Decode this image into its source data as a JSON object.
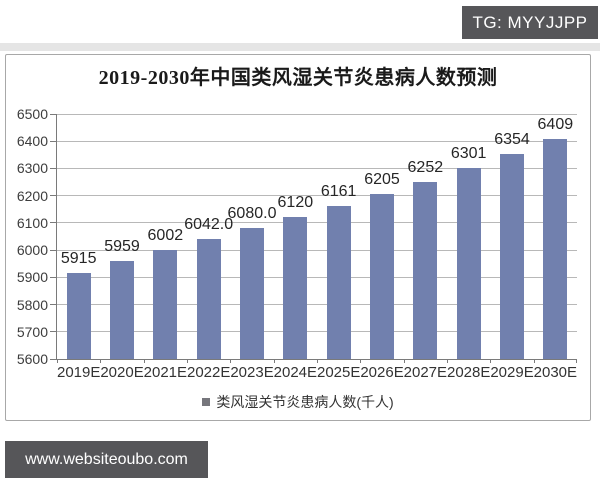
{
  "badge": {
    "text": "TG: MYYJJPP"
  },
  "footer": {
    "website": "www.websiteoubo.com"
  },
  "colors": {
    "bar": "#7180AE",
    "grid": "#b8b8b8",
    "axis": "#7a7a7a",
    "legend_marker": "#76767c",
    "dark_overlay_bg": "#565659"
  },
  "chart_data": {
    "type": "bar",
    "title": "2019-2030年中国类风湿关节炎患病人数预测",
    "legend": "类风湿关节炎患病人数(千人)",
    "legend_position": "bottom",
    "categories": [
      "2019E",
      "2020E",
      "2021E",
      "2022E",
      "2023E",
      "2024E",
      "2025E",
      "2026E",
      "2027E",
      "2028E",
      "2029E",
      "2030E"
    ],
    "values": [
      5915,
      5959,
      6002,
      6042.0,
      6080.0,
      6120,
      6161,
      6205,
      6252,
      6301,
      6354,
      6409
    ],
    "value_labels": [
      "5915",
      "5959",
      "6002",
      "6042.0",
      "6080.0",
      "6120",
      "6161",
      "6205",
      "6252",
      "6301",
      "6354",
      "6409"
    ],
    "xlabel": "",
    "ylabel": "",
    "ylim": [
      5600,
      6500
    ],
    "yticks": [
      5600,
      5700,
      5800,
      5900,
      6000,
      6100,
      6200,
      6300,
      6400,
      6500
    ],
    "grid": true
  }
}
